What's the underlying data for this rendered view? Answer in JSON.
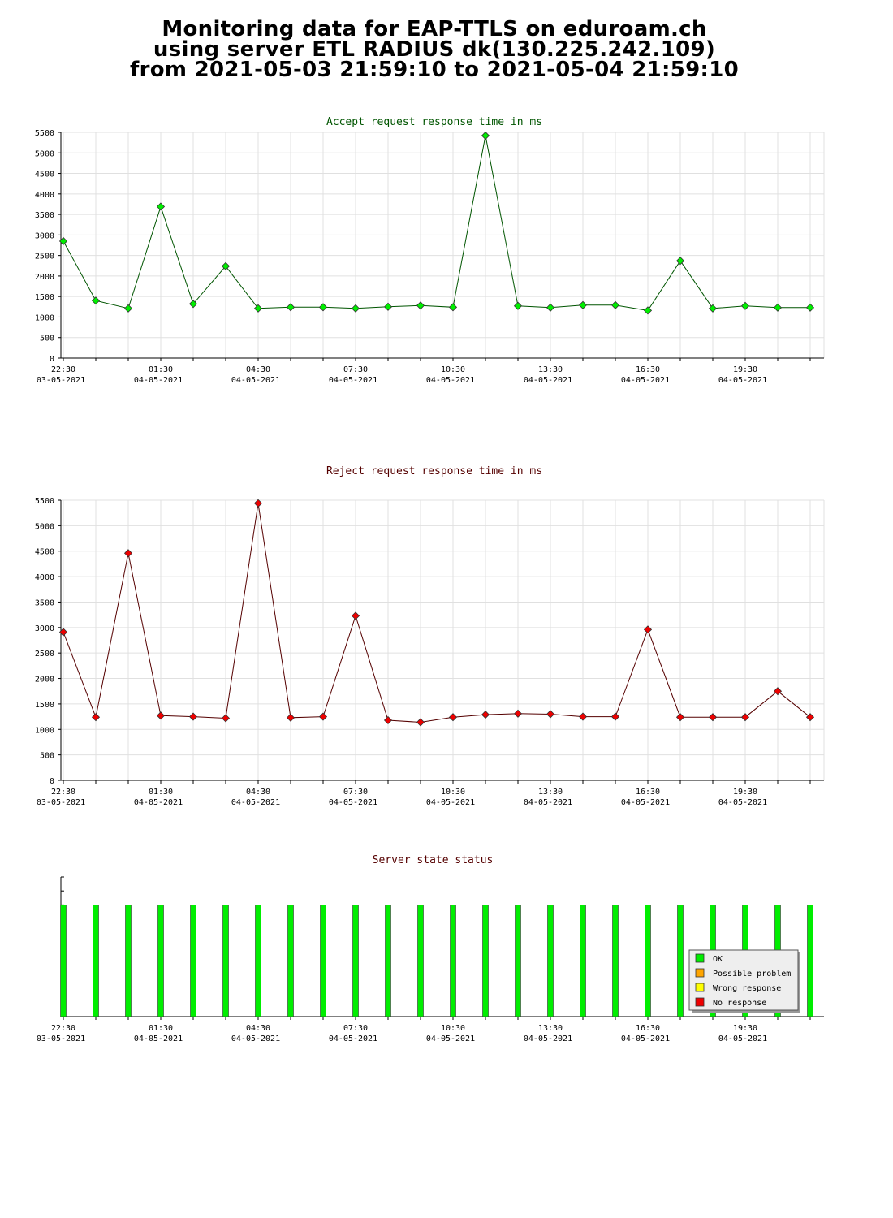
{
  "title_lines": [
    "Monitoring data for EAP-TTLS on eduroam.ch",
    "using server ETL RADIUS dk(130.225.242.109)",
    "from 2021-05-03 21:59:10 to 2021-05-04 21:59:10"
  ],
  "colors": {
    "accept_title": "#005500",
    "reject_title": "#550000",
    "status_title": "#550000",
    "accept_marker": "#00ee00",
    "accept_line": "#005500",
    "reject_marker": "#ee0000",
    "reject_line": "#550000",
    "ok": "#00ee00",
    "possible_problem": "#ffa500",
    "wrong_response": "#ffff00",
    "no_response": "#ee0000",
    "grid": "#e0e0e0"
  },
  "x_ticks": [
    {
      "time": "22:30",
      "date": "03-05-2021"
    },
    {
      "time": "01:30",
      "date": "04-05-2021"
    },
    {
      "time": "04:30",
      "date": "04-05-2021"
    },
    {
      "time": "07:30",
      "date": "04-05-2021"
    },
    {
      "time": "10:30",
      "date": "04-05-2021"
    },
    {
      "time": "13:30",
      "date": "04-05-2021"
    },
    {
      "time": "16:30",
      "date": "04-05-2021"
    },
    {
      "time": "19:30",
      "date": "04-05-2021"
    }
  ],
  "chart_data": [
    {
      "type": "line",
      "title": "Accept request response time in ms",
      "ylim": [
        0,
        5500
      ],
      "yticks": [
        0,
        500,
        1000,
        1500,
        2000,
        2500,
        3000,
        3500,
        4000,
        4500,
        5000,
        5500
      ],
      "x_hours": [
        "22:30",
        "23:30",
        "00:30",
        "01:30",
        "02:30",
        "03:30",
        "04:30",
        "05:30",
        "06:30",
        "07:30",
        "08:30",
        "09:30",
        "10:30",
        "11:30",
        "12:30",
        "13:30",
        "14:30",
        "15:30",
        "16:30",
        "17:30",
        "18:30",
        "19:30",
        "20:30",
        "21:30"
      ],
      "values": [
        2850,
        1400,
        1210,
        3690,
        1320,
        2240,
        1210,
        1240,
        1240,
        1210,
        1250,
        1280,
        1240,
        5420,
        1270,
        1230,
        1290,
        1290,
        1160,
        2370,
        1210,
        1270,
        1230,
        1230
      ],
      "grid": true
    },
    {
      "type": "line",
      "title": "Reject request response time in ms",
      "ylim": [
        0,
        5500
      ],
      "yticks": [
        0,
        500,
        1000,
        1500,
        2000,
        2500,
        3000,
        3500,
        4000,
        4500,
        5000,
        5500
      ],
      "x_hours": [
        "22:30",
        "23:30",
        "00:30",
        "01:30",
        "02:30",
        "03:30",
        "04:30",
        "05:30",
        "06:30",
        "07:30",
        "08:30",
        "09:30",
        "10:30",
        "11:30",
        "12:30",
        "13:30",
        "14:30",
        "15:30",
        "16:30",
        "17:30",
        "18:30",
        "19:30",
        "20:30",
        "21:30"
      ],
      "values": [
        2910,
        1240,
        4460,
        1270,
        1250,
        1220,
        5440,
        1230,
        1250,
        3230,
        1180,
        1140,
        1240,
        1290,
        1310,
        1300,
        1250,
        1250,
        2960,
        1240,
        1240,
        1240,
        1750,
        1240
      ],
      "grid": true
    },
    {
      "type": "bar",
      "title": "Server state status",
      "x_hours": [
        "22:30",
        "23:30",
        "00:30",
        "01:30",
        "02:30",
        "03:30",
        "04:30",
        "05:30",
        "06:30",
        "07:30",
        "08:30",
        "09:30",
        "10:30",
        "11:30",
        "12:30",
        "13:30",
        "14:30",
        "15:30",
        "16:30",
        "17:30",
        "18:30",
        "19:30",
        "20:30",
        "21:30"
      ],
      "status": [
        "OK",
        "OK",
        "OK",
        "OK",
        "OK",
        "OK",
        "OK",
        "OK",
        "OK",
        "OK",
        "OK",
        "OK",
        "OK",
        "OK",
        "OK",
        "OK",
        "OK",
        "OK",
        "OK",
        "OK",
        "OK",
        "OK",
        "OK",
        "OK"
      ],
      "level": 0.8,
      "legend": [
        "OK",
        "Possible problem",
        "Wrong response",
        "No response"
      ],
      "legend_position": "bottom-right"
    }
  ]
}
